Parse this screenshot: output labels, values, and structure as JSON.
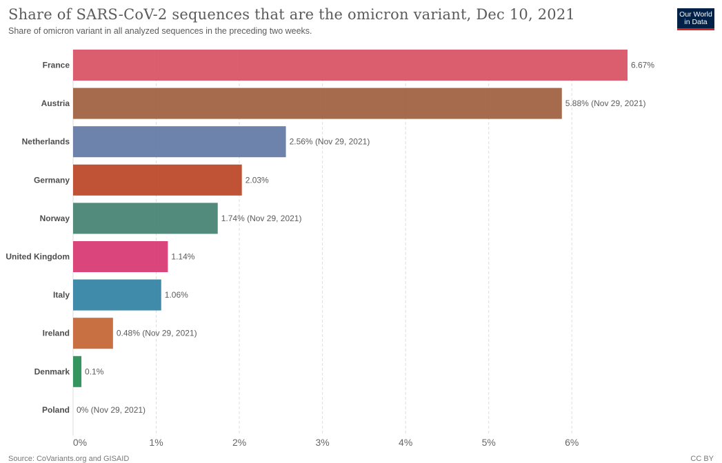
{
  "header": {
    "title": "Share of SARS-CoV-2 sequences that are the omicron variant, Dec 10, 2021",
    "subtitle": "Share of omicron variant in all analyzed sequences in the preceding two weeks."
  },
  "logo": {
    "line1": "Our World",
    "line2": "in Data"
  },
  "footer": {
    "source": "Source: CoVariants.org and GISAID",
    "license": "CC BY"
  },
  "chart_data": {
    "type": "bar",
    "orientation": "horizontal",
    "xlim": [
      0,
      6.67
    ],
    "x_ticks": [
      {
        "value": 0,
        "label": "0%"
      },
      {
        "value": 1,
        "label": "1%"
      },
      {
        "value": 2,
        "label": "2%"
      },
      {
        "value": 3,
        "label": "3%"
      },
      {
        "value": 4,
        "label": "4%"
      },
      {
        "value": 5,
        "label": "5%"
      },
      {
        "value": 6,
        "label": "6%"
      }
    ],
    "grid": "vertical dashed",
    "bars": [
      {
        "category": "France",
        "value": 6.67,
        "label": "6.67%",
        "color": "#d64d5d"
      },
      {
        "category": "Austria",
        "value": 5.88,
        "label": "5.88% (Nov 29, 2021)",
        "color": "#9c5b3a"
      },
      {
        "category": "Netherlands",
        "value": 2.56,
        "label": "2.56% (Nov 29, 2021)",
        "color": "#5d76a3"
      },
      {
        "category": "Germany",
        "value": 2.03,
        "label": "2.03%",
        "color": "#b9401f"
      },
      {
        "category": "Norway",
        "value": 1.74,
        "label": "1.74% (Nov 29, 2021)",
        "color": "#3f7d6e"
      },
      {
        "category": "United Kingdom",
        "value": 1.14,
        "label": "1.14%",
        "color": "#d6316d"
      },
      {
        "category": "Italy",
        "value": 1.06,
        "label": "1.06%",
        "color": "#2b7ea1"
      },
      {
        "category": "Ireland",
        "value": 0.48,
        "label": "0.48% (Nov 29, 2021)",
        "color": "#c2602d"
      },
      {
        "category": "Denmark",
        "value": 0.1,
        "label": "0.1%",
        "color": "#1f8a4e"
      },
      {
        "category": "Poland",
        "value": 0,
        "label": "0% (Nov 29, 2021)",
        "color": "#8c8c8c"
      }
    ]
  }
}
